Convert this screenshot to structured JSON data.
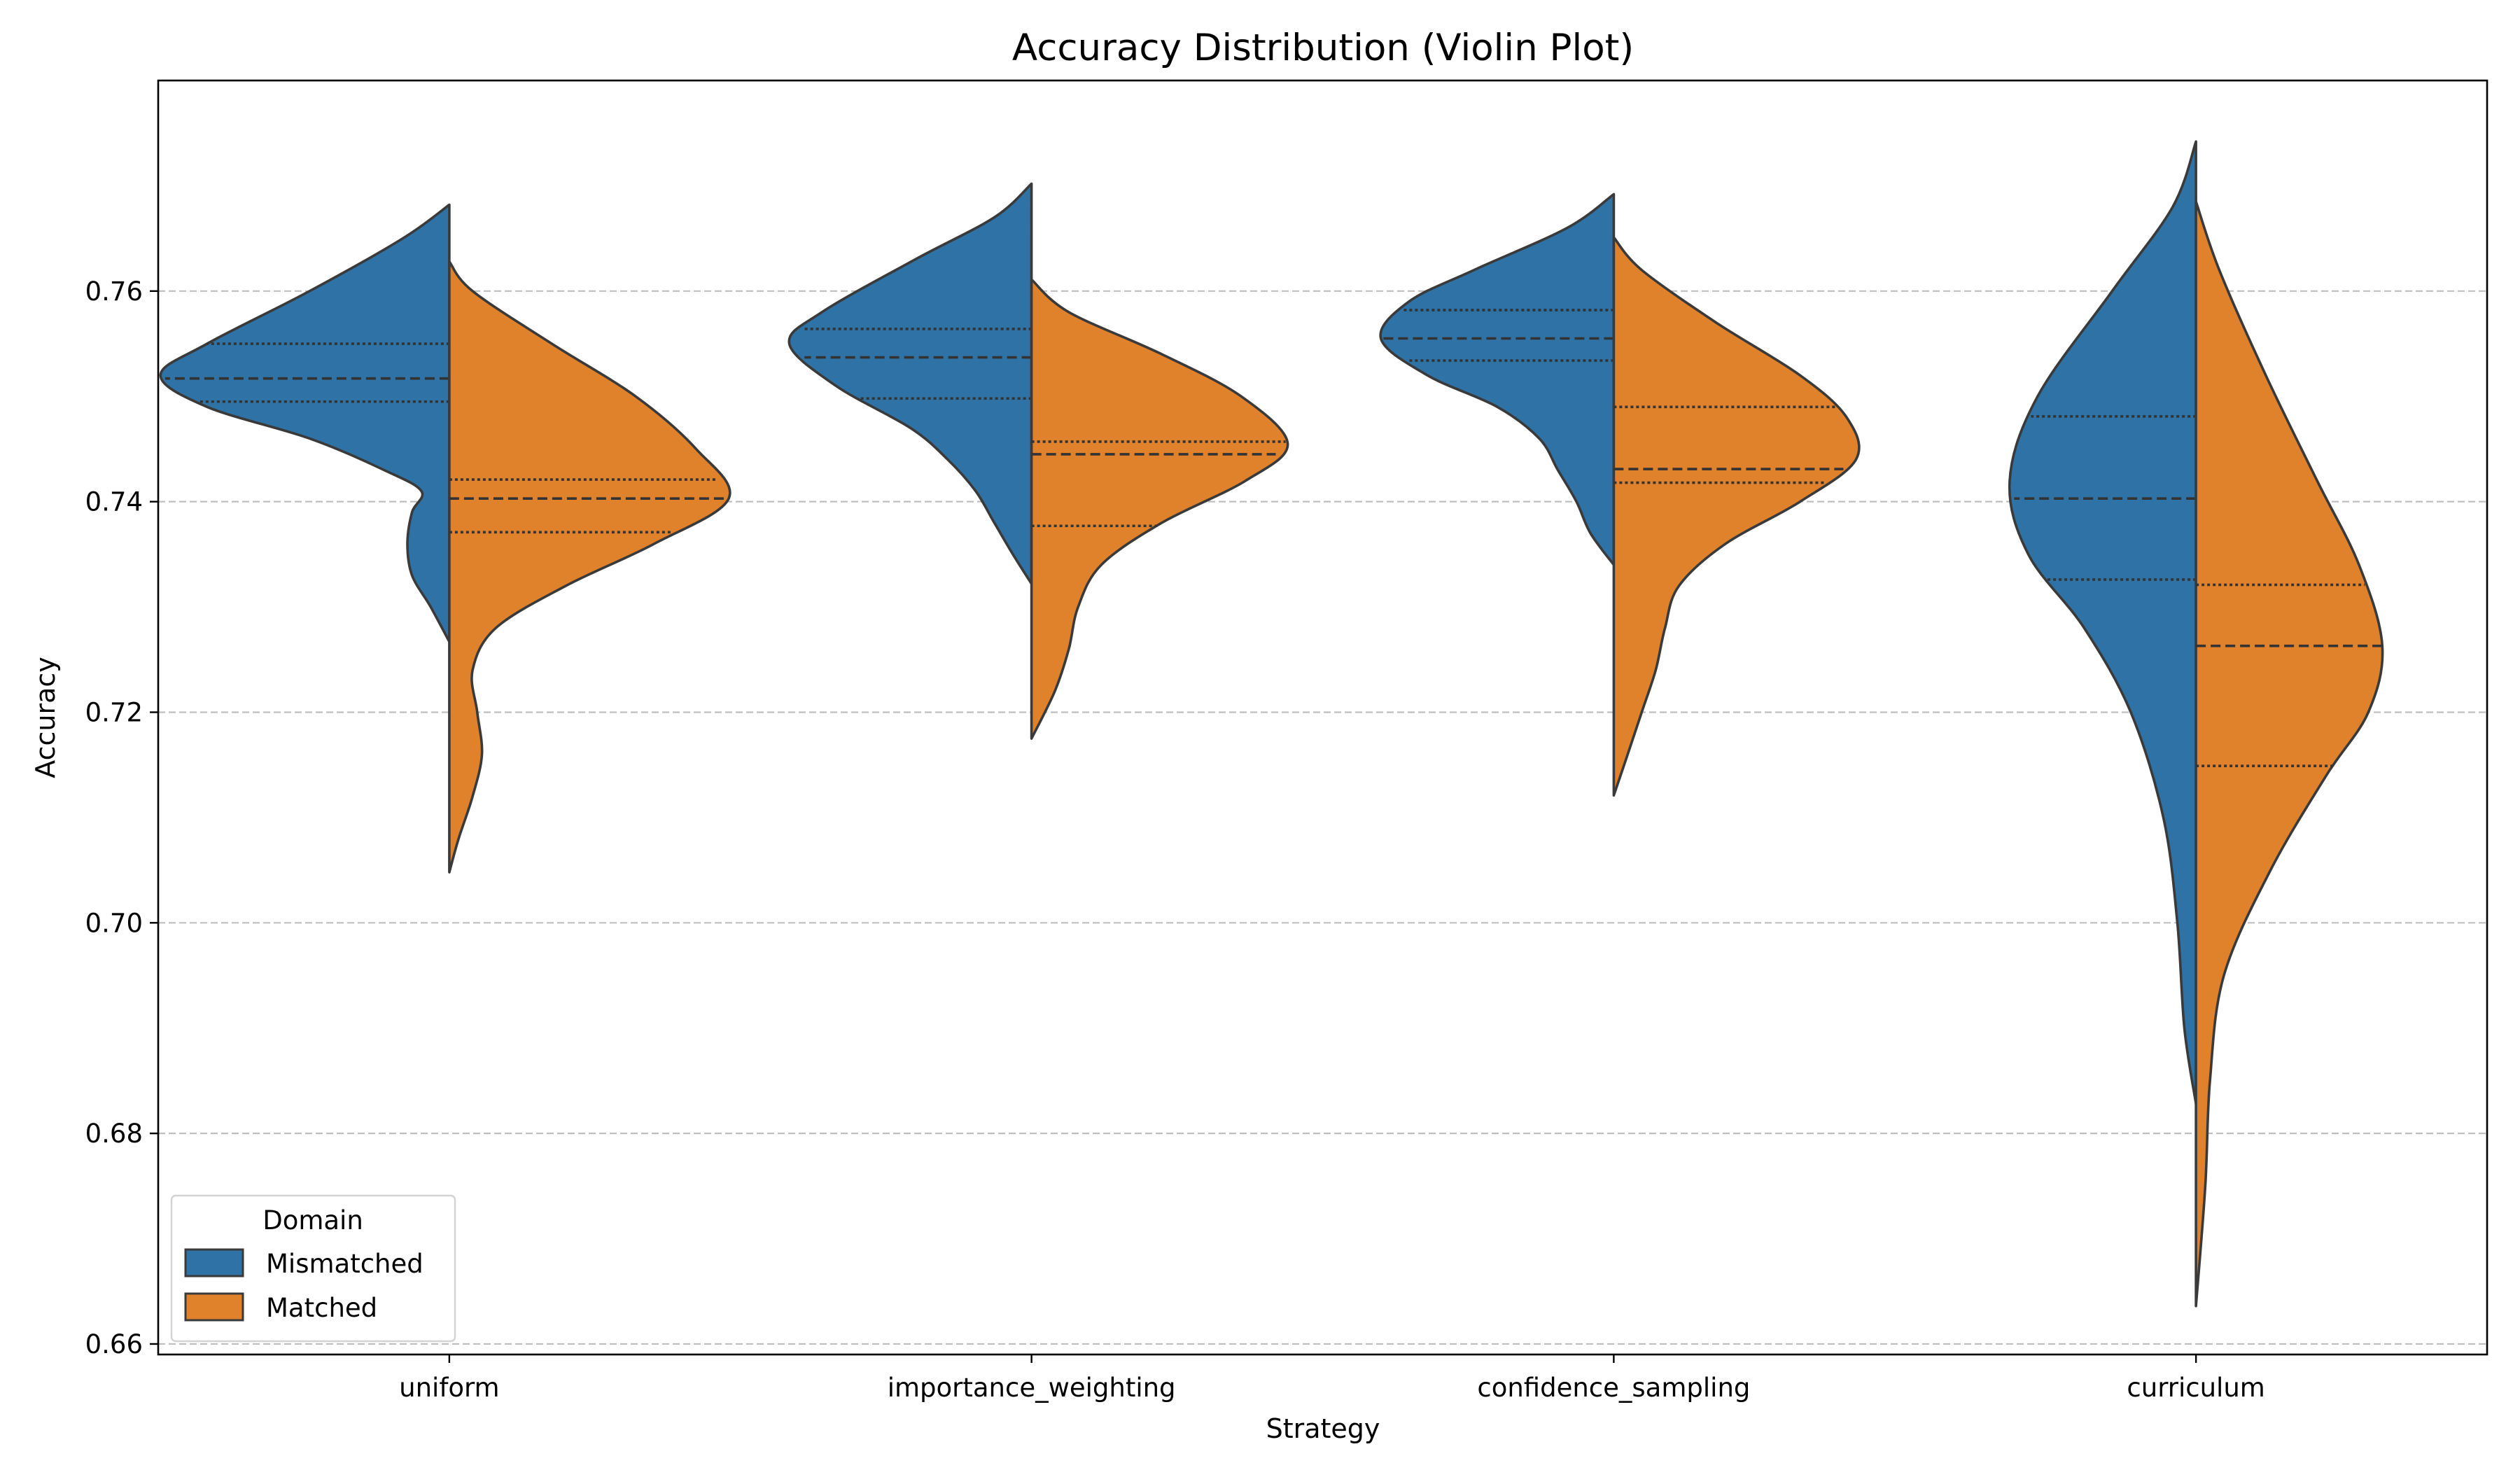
{
  "chart_data": {
    "type": "violin",
    "title": "Accuracy Distribution (Violin Plot)",
    "xlabel": "Strategy",
    "ylabel": "Accuracy",
    "categories": [
      "uniform",
      "importance_weighting",
      "confidence_sampling",
      "curriculum"
    ],
    "ylim": [
      0.659,
      0.78
    ],
    "yticks": [
      0.66,
      0.68,
      0.7,
      0.72,
      0.74,
      0.76
    ],
    "ytick_labels": [
      "0.66",
      "0.68",
      "0.70",
      "0.72",
      "0.74",
      "0.76"
    ],
    "grid": "y-dashed",
    "legend": {
      "title": "Domain",
      "placement": "lower-left",
      "entries": [
        {
          "label": "Mismatched",
          "color": "#2f72a6"
        },
        {
          "label": "Matched",
          "color": "#e0812c"
        }
      ]
    },
    "series": [
      {
        "name": "Mismatched",
        "side": "left",
        "color": "#2f72a6",
        "violins": [
          {
            "category": "uniform",
            "min": 0.7267,
            "max": 0.7682,
            "q1": 0.7495,
            "median": 0.7517,
            "q3": 0.755,
            "profile": [
              [
                0.7682,
                0.0
              ],
              [
                0.765,
                0.1
              ],
              [
                0.76,
                0.3
              ],
              [
                0.755,
                0.52
              ],
              [
                0.752,
                0.62
              ],
              [
                0.749,
                0.52
              ],
              [
                0.746,
                0.3
              ],
              [
                0.743,
                0.14
              ],
              [
                0.741,
                0.06
              ],
              [
                0.739,
                0.08
              ],
              [
                0.736,
                0.09
              ],
              [
                0.733,
                0.08
              ],
              [
                0.73,
                0.04
              ],
              [
                0.7267,
                0.0
              ]
            ]
          },
          {
            "category": "importance_weighting",
            "min": 0.7322,
            "max": 0.7702,
            "q1": 0.7498,
            "median": 0.7537,
            "q3": 0.7564,
            "profile": [
              [
                0.7702,
                0.0
              ],
              [
                0.767,
                0.08
              ],
              [
                0.763,
                0.25
              ],
              [
                0.758,
                0.45
              ],
              [
                0.755,
                0.52
              ],
              [
                0.751,
                0.42
              ],
              [
                0.747,
                0.26
              ],
              [
                0.744,
                0.18
              ],
              [
                0.741,
                0.12
              ],
              [
                0.738,
                0.08
              ],
              [
                0.735,
                0.04
              ],
              [
                0.7322,
                0.0
              ]
            ]
          },
          {
            "category": "confidence_sampling",
            "min": 0.734,
            "max": 0.7692,
            "q1": 0.7534,
            "median": 0.7555,
            "q3": 0.7582,
            "profile": [
              [
                0.7692,
                0.0
              ],
              [
                0.766,
                0.1
              ],
              [
                0.762,
                0.3
              ],
              [
                0.759,
                0.44
              ],
              [
                0.7555,
                0.5
              ],
              [
                0.752,
                0.4
              ],
              [
                0.749,
                0.25
              ],
              [
                0.746,
                0.16
              ],
              [
                0.743,
                0.12
              ],
              [
                0.74,
                0.08
              ],
              [
                0.737,
                0.05
              ],
              [
                0.734,
                0.0
              ]
            ]
          },
          {
            "category": "curriculum",
            "min": 0.6828,
            "max": 0.7742,
            "q1": 0.7326,
            "median": 0.7403,
            "q3": 0.7481,
            "profile": [
              [
                0.7742,
                0.0
              ],
              [
                0.768,
                0.05
              ],
              [
                0.76,
                0.18
              ],
              [
                0.75,
                0.34
              ],
              [
                0.742,
                0.4
              ],
              [
                0.735,
                0.36
              ],
              [
                0.728,
                0.24
              ],
              [
                0.72,
                0.14
              ],
              [
                0.71,
                0.07
              ],
              [
                0.7,
                0.04
              ],
              [
                0.69,
                0.025
              ],
              [
                0.6828,
                0.0
              ]
            ]
          }
        ]
      },
      {
        "name": "Matched",
        "side": "right",
        "color": "#e0812c",
        "violins": [
          {
            "category": "uniform",
            "min": 0.7048,
            "max": 0.7628,
            "q1": 0.7371,
            "median": 0.7403,
            "q3": 0.7421,
            "profile": [
              [
                0.7628,
                0.0
              ],
              [
                0.76,
                0.05
              ],
              [
                0.755,
                0.22
              ],
              [
                0.75,
                0.4
              ],
              [
                0.745,
                0.53
              ],
              [
                0.7403,
                0.6
              ],
              [
                0.736,
                0.44
              ],
              [
                0.732,
                0.25
              ],
              [
                0.728,
                0.1
              ],
              [
                0.724,
                0.05
              ],
              [
                0.72,
                0.06
              ],
              [
                0.716,
                0.07
              ],
              [
                0.712,
                0.05
              ],
              [
                0.708,
                0.02
              ],
              [
                0.7048,
                0.0
              ]
            ]
          },
          {
            "category": "importance_weighting",
            "min": 0.7175,
            "max": 0.7611,
            "q1": 0.7377,
            "median": 0.7445,
            "q3": 0.7457,
            "profile": [
              [
                0.7611,
                0.0
              ],
              [
                0.758,
                0.08
              ],
              [
                0.754,
                0.28
              ],
              [
                0.75,
                0.45
              ],
              [
                0.7455,
                0.55
              ],
              [
                0.742,
                0.46
              ],
              [
                0.738,
                0.28
              ],
              [
                0.734,
                0.15
              ],
              [
                0.73,
                0.1
              ],
              [
                0.726,
                0.08
              ],
              [
                0.722,
                0.05
              ],
              [
                0.7175,
                0.0
              ]
            ]
          },
          {
            "category": "confidence_sampling",
            "min": 0.7121,
            "max": 0.7651,
            "q1": 0.7418,
            "median": 0.7431,
            "q3": 0.749,
            "profile": [
              [
                0.7651,
                0.0
              ],
              [
                0.762,
                0.06
              ],
              [
                0.757,
                0.22
              ],
              [
                0.752,
                0.4
              ],
              [
                0.748,
                0.5
              ],
              [
                0.744,
                0.52
              ],
              [
                0.74,
                0.4
              ],
              [
                0.736,
                0.24
              ],
              [
                0.732,
                0.14
              ],
              [
                0.728,
                0.11
              ],
              [
                0.724,
                0.09
              ],
              [
                0.72,
                0.06
              ],
              [
                0.716,
                0.03
              ],
              [
                0.7121,
                0.0
              ]
            ]
          },
          {
            "category": "curriculum",
            "min": 0.6636,
            "max": 0.7685,
            "q1": 0.7149,
            "median": 0.7263,
            "q3": 0.7321,
            "profile": [
              [
                0.7685,
                0.0
              ],
              [
                0.762,
                0.05
              ],
              [
                0.752,
                0.15
              ],
              [
                0.742,
                0.26
              ],
              [
                0.734,
                0.35
              ],
              [
                0.7263,
                0.4
              ],
              [
                0.72,
                0.37
              ],
              [
                0.714,
                0.28
              ],
              [
                0.705,
                0.16
              ],
              [
                0.695,
                0.06
              ],
              [
                0.685,
                0.03
              ],
              [
                0.675,
                0.02
              ],
              [
                0.6636,
                0.0
              ]
            ]
          }
        ]
      }
    ]
  }
}
